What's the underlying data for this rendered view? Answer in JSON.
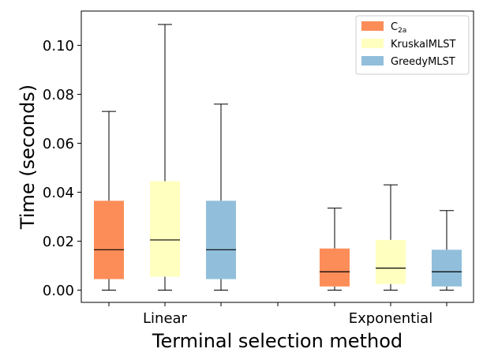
{
  "chart_data": {
    "type": "box",
    "title": "",
    "xlabel": "Terminal selection method",
    "ylabel": "Time (seconds)",
    "ylim": [
      -0.005,
      0.114
    ],
    "yticks": [
      0.0,
      0.02,
      0.04,
      0.06,
      0.08,
      0.1
    ],
    "ytick_labels": [
      "0.00",
      "0.02",
      "0.04",
      "0.06",
      "0.08",
      "0.10"
    ],
    "categories": [
      "Linear",
      "Exponential"
    ],
    "legend_position": "top-right",
    "series": [
      {
        "name": "C2a",
        "label_base": "C",
        "label_sub": "2a",
        "color": "#fc8d59",
        "boxes": [
          {
            "category": "Linear",
            "min": 0.0,
            "q1": 0.0045,
            "median": 0.0165,
            "q3": 0.0365,
            "max": 0.073
          },
          {
            "category": "Exponential",
            "min": 0.0,
            "q1": 0.0015,
            "median": 0.0075,
            "q3": 0.017,
            "max": 0.0335
          }
        ]
      },
      {
        "name": "KruskalMLST",
        "label_base": "KruskalMLST",
        "label_sub": "",
        "color": "#ffffbf",
        "boxes": [
          {
            "category": "Linear",
            "min": 0.0,
            "q1": 0.0055,
            "median": 0.0205,
            "q3": 0.0445,
            "max": 0.1085
          },
          {
            "category": "Exponential",
            "min": 0.0,
            "q1": 0.0025,
            "median": 0.009,
            "q3": 0.0205,
            "max": 0.043
          }
        ]
      },
      {
        "name": "GreedyMLST",
        "label_base": "GreedyMLST",
        "label_sub": "",
        "color": "#91bfdb",
        "boxes": [
          {
            "category": "Linear",
            "min": 0.0,
            "q1": 0.0045,
            "median": 0.0165,
            "q3": 0.0365,
            "max": 0.076
          },
          {
            "category": "Exponential",
            "min": 0.0,
            "q1": 0.0015,
            "median": 0.0075,
            "q3": 0.0165,
            "max": 0.0325
          }
        ]
      }
    ]
  }
}
